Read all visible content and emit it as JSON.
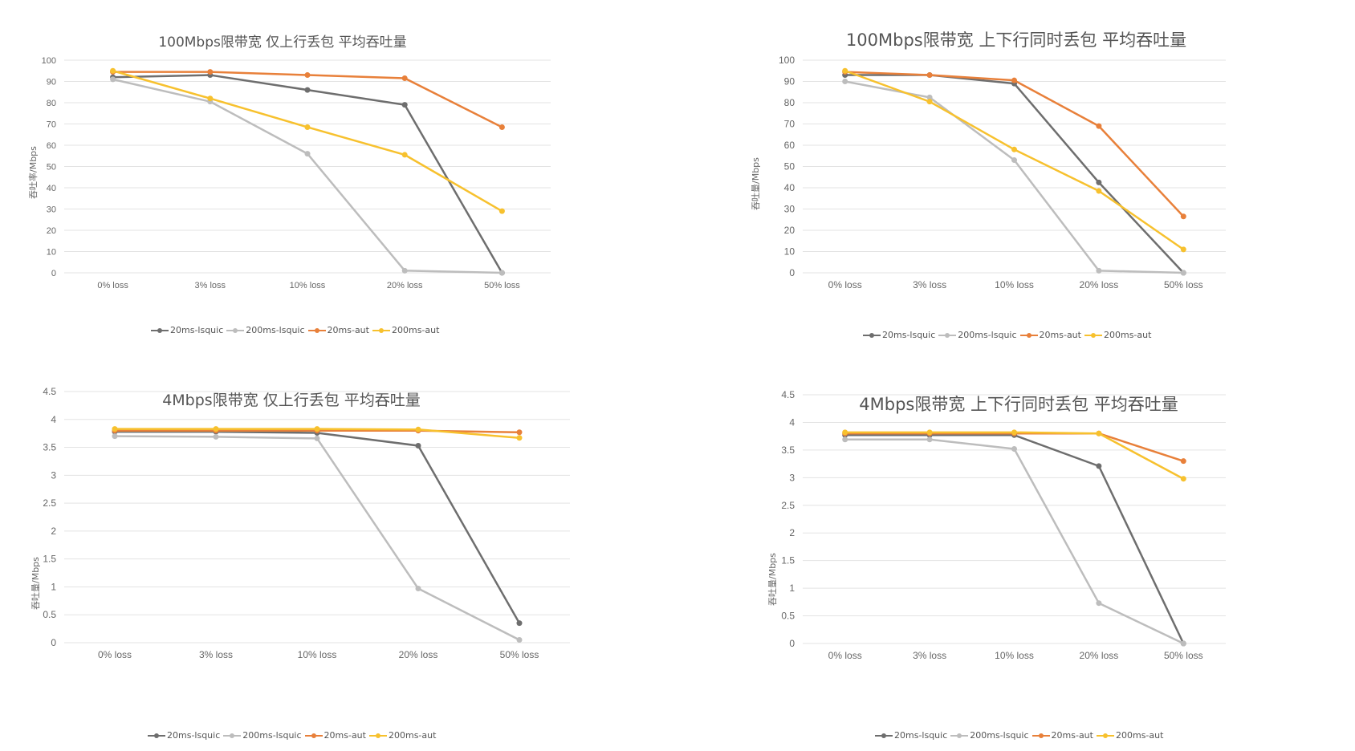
{
  "charts": [
    {
      "title": "100Mbps限带宽 仅上行丢包 平均吞吐量",
      "ylabel": "吞吐率/Mbps",
      "legend": [
        "20ms-lsquic",
        "200ms-lsquic",
        "20ms-aut",
        "200ms-aut"
      ]
    },
    {
      "title": "100Mbps限带宽 上下行同时丢包 平均吞吐量",
      "ylabel": "吞吐量/Mbps",
      "legend": [
        "20ms-lsquic",
        "200ms-lsquic",
        "20ms-aut",
        "200ms-aut"
      ]
    },
    {
      "title": "4Mbps限带宽 仅上行丢包 平均吞吐量",
      "ylabel": "吞吐量/Mbps",
      "legend": [
        "20ms-lsquic",
        "200ms-lsquic",
        "20ms-aut",
        "200ms-aut"
      ]
    },
    {
      "title": "4Mbps限带宽 上下行同时丢包 平均吞吐量",
      "ylabel": "吞吐量/Mbps",
      "legend": [
        "20ms-lsquic",
        "200ms-lsquic",
        "20ms-aut",
        "200ms-aut"
      ]
    }
  ],
  "colors": {
    "20ms-lsquic": "#6e6e6e",
    "200ms-lsquic": "#bdbdbd",
    "20ms-aut": "#e8803a",
    "200ms-aut": "#f7c12e",
    "grid": "#e3e3e3"
  },
  "chart_data": [
    {
      "type": "line",
      "title": "100Mbps限带宽 仅上行丢包 平均吞吐量",
      "ylabel": "吞吐率/Mbps",
      "categories": [
        "0% loss",
        "3% loss",
        "10% loss",
        "20% loss",
        "50% loss"
      ],
      "ylim": [
        0,
        100
      ],
      "yticks": [
        "0",
        "10",
        "20",
        "30",
        "40",
        "50",
        "60",
        "70",
        "80",
        "90",
        "100"
      ],
      "grid": true,
      "legend_position": "bottom",
      "series": [
        {
          "name": "20ms-lsquic",
          "values": [
            92,
            93,
            86,
            79,
            0
          ]
        },
        {
          "name": "200ms-lsquic",
          "values": [
            91,
            80.5,
            56,
            1,
            0
          ]
        },
        {
          "name": "20ms-aut",
          "values": [
            94.5,
            94.5,
            93,
            91.5,
            68.5
          ]
        },
        {
          "name": "200ms-aut",
          "values": [
            95,
            82,
            68.5,
            55.5,
            29
          ]
        }
      ]
    },
    {
      "type": "line",
      "title": "100Mbps限带宽 上下行同时丢包 平均吞吐量",
      "ylabel": "吞吐量/Mbps",
      "categories": [
        "0% loss",
        "3% loss",
        "10% loss",
        "20% loss",
        "50% loss"
      ],
      "ylim": [
        0,
        100
      ],
      "yticks": [
        "0",
        "10",
        "20",
        "30",
        "40",
        "50",
        "60",
        "70",
        "80",
        "90",
        "100"
      ],
      "grid": true,
      "legend_position": "bottom",
      "series": [
        {
          "name": "20ms-lsquic",
          "values": [
            93,
            93,
            89,
            42.5,
            0
          ]
        },
        {
          "name": "200ms-lsquic",
          "values": [
            90,
            82.5,
            53,
            1,
            0
          ]
        },
        {
          "name": "20ms-aut",
          "values": [
            94.5,
            93,
            90.5,
            69,
            26.5
          ]
        },
        {
          "name": "200ms-aut",
          "values": [
            95,
            80.5,
            58,
            38.5,
            11
          ]
        }
      ]
    },
    {
      "type": "line",
      "title": "4Mbps限带宽 仅上行丢包 平均吞吐量",
      "ylabel": "吞吐量/Mbps",
      "categories": [
        "0% loss",
        "3% loss",
        "10% loss",
        "20% loss",
        "50% loss"
      ],
      "ylim": [
        0,
        4.5
      ],
      "yticks": [
        "0",
        "0.5",
        "1",
        "1.5",
        "2",
        "2.5",
        "3",
        "3.5",
        "4",
        "4.5"
      ],
      "grid": true,
      "legend_position": "bottom",
      "series": [
        {
          "name": "20ms-lsquic",
          "values": [
            3.78,
            3.78,
            3.76,
            3.53,
            0.35
          ]
        },
        {
          "name": "200ms-lsquic",
          "values": [
            3.7,
            3.69,
            3.66,
            0.97,
            0.05
          ]
        },
        {
          "name": "20ms-aut",
          "values": [
            3.8,
            3.8,
            3.8,
            3.8,
            3.77
          ]
        },
        {
          "name": "200ms-aut",
          "values": [
            3.83,
            3.83,
            3.83,
            3.82,
            3.67
          ]
        }
      ]
    },
    {
      "type": "line",
      "title": "4Mbps限带宽 上下行同时丢包 平均吞吐量",
      "ylabel": "吞吐量/Mbps",
      "categories": [
        "0% loss",
        "3% loss",
        "10% loss",
        "20% loss",
        "50% loss"
      ],
      "ylim": [
        0,
        4.5
      ],
      "yticks": [
        "0",
        "0.5",
        "1",
        "1.5",
        "2",
        "2.5",
        "3",
        "3.5",
        "4",
        "4.5"
      ],
      "grid": true,
      "legend_position": "bottom",
      "series": [
        {
          "name": "20ms-lsquic",
          "values": [
            3.77,
            3.77,
            3.77,
            3.21,
            0
          ]
        },
        {
          "name": "200ms-lsquic",
          "values": [
            3.69,
            3.69,
            3.52,
            0.73,
            0
          ]
        },
        {
          "name": "20ms-aut",
          "values": [
            3.8,
            3.8,
            3.8,
            3.8,
            3.3
          ]
        },
        {
          "name": "200ms-aut",
          "values": [
            3.82,
            3.82,
            3.82,
            3.8,
            2.98
          ]
        }
      ]
    }
  ]
}
